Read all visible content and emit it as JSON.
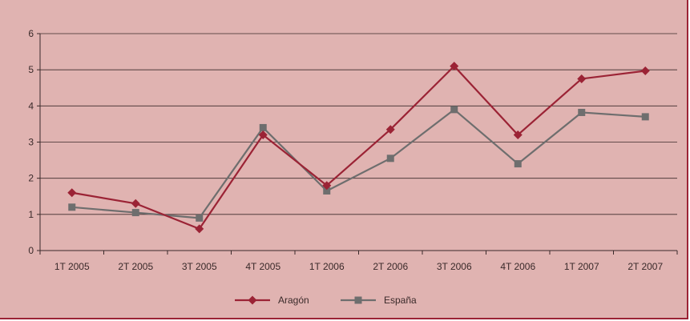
{
  "chart_data": {
    "type": "line",
    "title": "",
    "xlabel": "",
    "ylabel": "",
    "categories": [
      "1T 2005",
      "2T 2005",
      "3T 2005",
      "4T 2005",
      "1T 2006",
      "2T 2006",
      "3T 2006",
      "4T 2006",
      "1T 2007",
      "2T 2007"
    ],
    "ylim": [
      0,
      6
    ],
    "yticks": [
      0,
      1,
      2,
      3,
      4,
      5,
      6
    ],
    "grid": true,
    "legend_position": "bottom",
    "series": [
      {
        "name": "Aragón",
        "color": "#9b2335",
        "marker": "diamond",
        "values": [
          1.6,
          1.3,
          0.6,
          3.2,
          1.8,
          3.35,
          5.1,
          3.2,
          4.75,
          4.97
        ]
      },
      {
        "name": "España",
        "color": "#6e6e6e",
        "marker": "square",
        "values": [
          1.2,
          1.05,
          0.9,
          3.4,
          1.65,
          2.55,
          3.9,
          2.4,
          3.82,
          3.7
        ]
      }
    ]
  },
  "colors": {
    "background": "#e0b3b1",
    "border": "#9b2335",
    "gridline": "#3a2a2a"
  }
}
